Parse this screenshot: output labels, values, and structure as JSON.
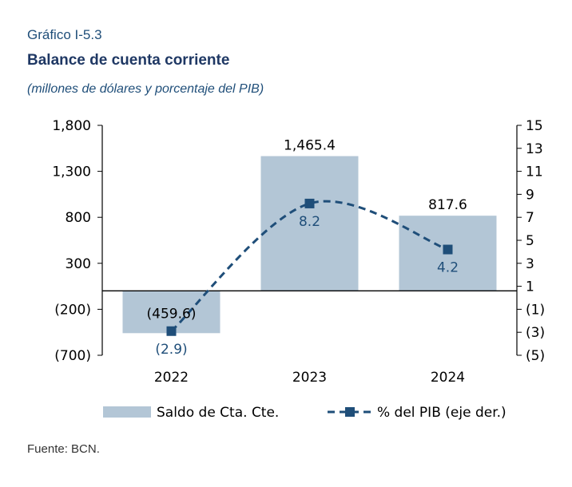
{
  "header": {
    "kicker": "Gráfico I-5.3",
    "title": "Balance de cuenta corriente",
    "subtitle": "(millones de dólares y porcentaje del PIB)"
  },
  "chart_data": {
    "type": "bar",
    "categories": [
      "2022",
      "2023",
      "2024"
    ],
    "series": [
      {
        "name": "Saldo de Cta. Cte.",
        "type": "bar",
        "axis": "left",
        "values": [
          -459.6,
          1465.4,
          817.6
        ],
        "labels": [
          "(459.6)",
          "1,465.4",
          "817.6"
        ],
        "color": "#b3c6d6"
      },
      {
        "name": "% del PIB (eje der.)",
        "type": "line",
        "axis": "right",
        "style": "dashed-smooth",
        "marker": "square",
        "values": [
          -2.9,
          8.2,
          4.2
        ],
        "labels": [
          "(2.9)",
          "8.2",
          "4.2"
        ],
        "color": "#1f4e79"
      }
    ],
    "y_left": {
      "range": [
        -700,
        1800
      ],
      "ticks": [
        1800,
        1300,
        800,
        300,
        -200,
        -700
      ],
      "tick_labels": [
        "1,800",
        "1,300",
        "800",
        "300",
        "(200)",
        "(700)"
      ]
    },
    "y_right": {
      "range": [
        -5,
        15
      ],
      "ticks": [
        15,
        13,
        11,
        9,
        7,
        5,
        3,
        1,
        -1,
        -3,
        -5
      ],
      "tick_labels": [
        "15",
        "13",
        "11",
        "9",
        "7",
        "5",
        "3",
        "1",
        "(1)",
        "(3)",
        "(5)"
      ]
    },
    "grid": false,
    "legend": "bottom"
  },
  "source": "Fuente: BCN."
}
